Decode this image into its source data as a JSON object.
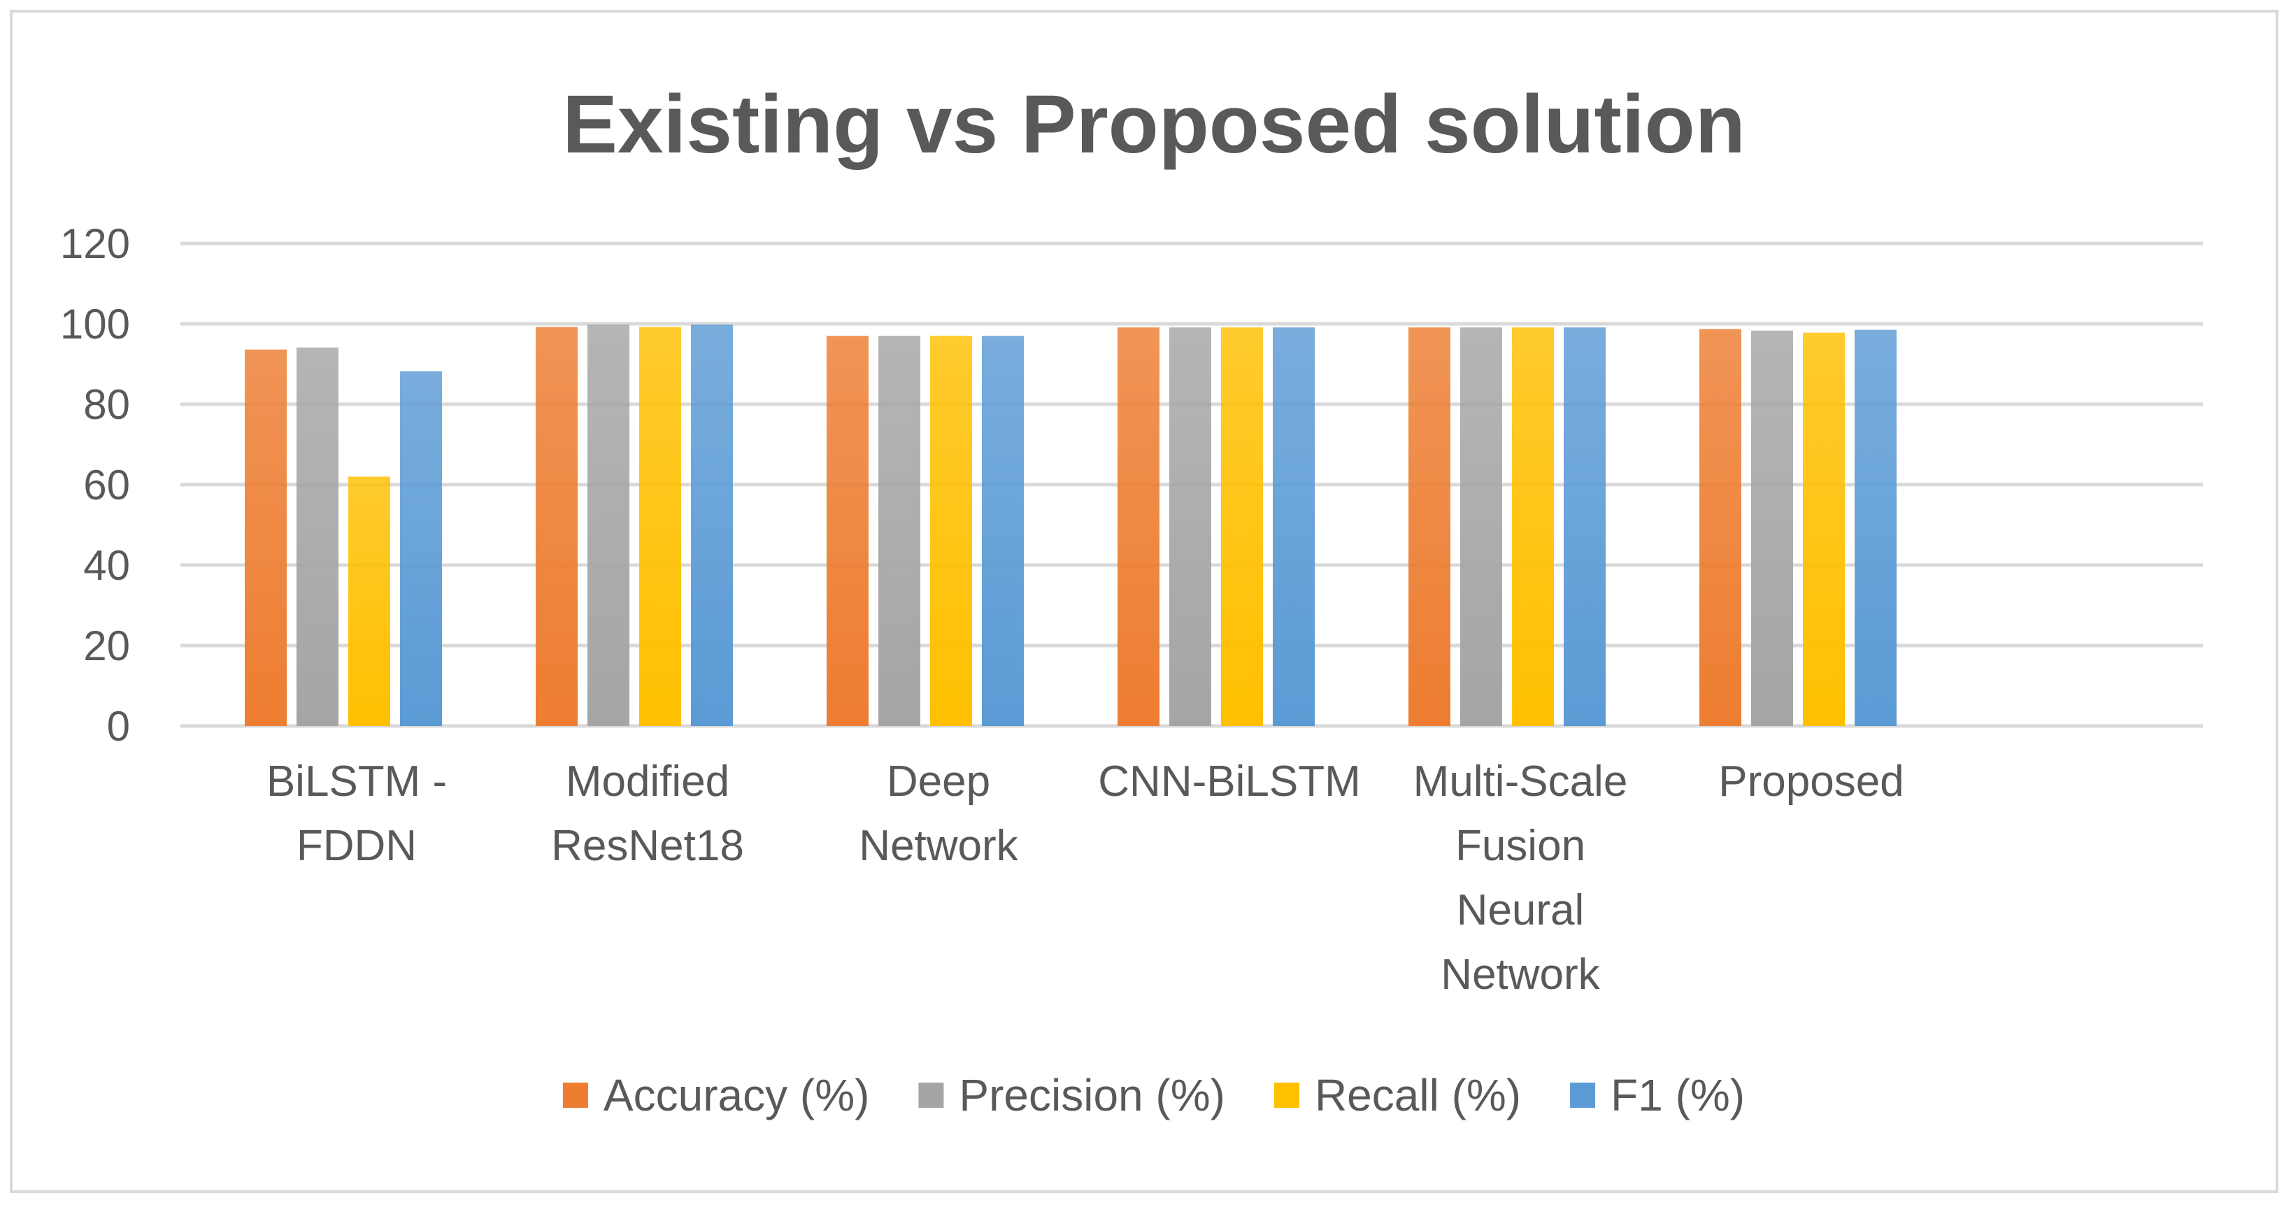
{
  "chart_data": {
    "type": "bar",
    "title": "Existing vs Proposed solution",
    "xlabel": "",
    "ylabel": "",
    "ylim": [
      0,
      120
    ],
    "yticks": [
      0,
      20,
      40,
      60,
      80,
      100,
      120
    ],
    "grid": true,
    "legend_position": "bottom",
    "categories": [
      [
        "BiLSTM -",
        "FDDN"
      ],
      [
        "Modified",
        "ResNet18"
      ],
      [
        "Deep",
        "Network"
      ],
      [
        "CNN-BiLSTM"
      ],
      [
        "Multi-Scale",
        "Fusion",
        "Neural",
        "Network"
      ],
      [
        "Proposed"
      ]
    ],
    "series": [
      {
        "name": "Accuracy (%)",
        "color": "#ed7d31",
        "values": [
          93.6,
          99.2,
          97.0,
          99.1,
          99.1,
          98.7
        ]
      },
      {
        "name": "Precision (%)",
        "color": "#a5a5a5",
        "values": [
          94.1,
          99.8,
          97.0,
          99.1,
          99.1,
          98.3
        ]
      },
      {
        "name": "Recall (%)",
        "color": "#ffc000",
        "values": [
          62.0,
          99.2,
          97.0,
          99.1,
          99.1,
          97.8
        ]
      },
      {
        "name": "F1 (%)",
        "color": "#5b9bd5",
        "values": [
          88.2,
          99.8,
          97.0,
          99.1,
          99.1,
          98.5
        ]
      }
    ]
  }
}
